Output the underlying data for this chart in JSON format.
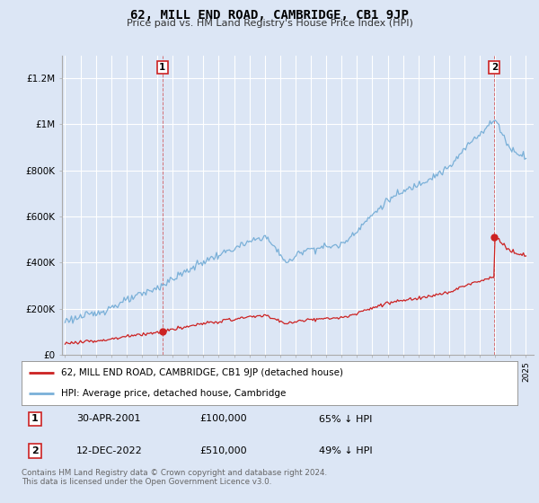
{
  "title": "62, MILL END ROAD, CAMBRIDGE, CB1 9JP",
  "subtitle": "Price paid vs. HM Land Registry's House Price Index (HPI)",
  "ylim": [
    0,
    1300000
  ],
  "yticks": [
    0,
    200000,
    400000,
    600000,
    800000,
    1000000,
    1200000
  ],
  "ytick_labels": [
    "£0",
    "£200K",
    "£400K",
    "£600K",
    "£800K",
    "£1M",
    "£1.2M"
  ],
  "background_color": "#dce6f5",
  "plot_bg_color": "#dce6f5",
  "grid_color": "#ffffff",
  "hpi_color": "#7ab0d8",
  "price_color": "#cc2222",
  "sale1_x": 2001.33,
  "sale1_y": 100000,
  "sale2_x": 2022.95,
  "sale2_y": 510000,
  "legend_label_red": "62, MILL END ROAD, CAMBRIDGE, CB1 9JP (detached house)",
  "legend_label_blue": "HPI: Average price, detached house, Cambridge",
  "table_row1": [
    "1",
    "30-APR-2001",
    "£100,000",
    "65% ↓ HPI"
  ],
  "table_row2": [
    "2",
    "12-DEC-2022",
    "£510,000",
    "49% ↓ HPI"
  ],
  "footer": "Contains HM Land Registry data © Crown copyright and database right 2024.\nThis data is licensed under the Open Government Licence v3.0.",
  "xmin": 1994.8,
  "xmax": 2025.5
}
